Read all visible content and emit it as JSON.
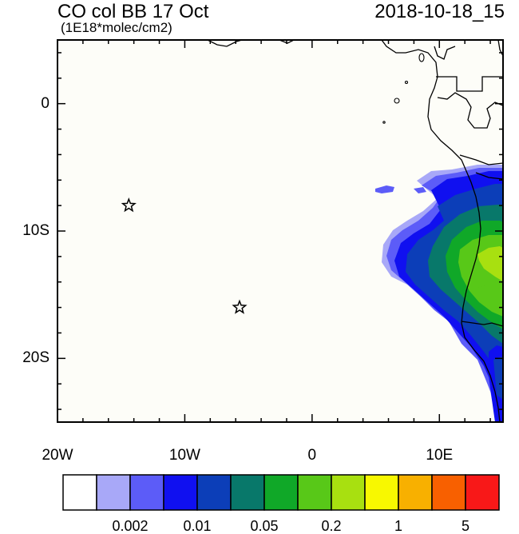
{
  "header": {
    "title": "CO col BB 17 Oct",
    "units": "(1E18*molec/cm2)",
    "valid_time": "2018-10-18_15"
  },
  "map": {
    "lon_range": [
      -20,
      15
    ],
    "lat_range": [
      -25,
      5
    ],
    "background": "#fdfdf8",
    "lat_labels": [
      {
        "lat": 0,
        "text": "0"
      },
      {
        "lat": -10,
        "text": "10S"
      },
      {
        "lat": -20,
        "text": "20S"
      }
    ],
    "lon_labels": [
      {
        "lon": -20,
        "text": "20W"
      },
      {
        "lon": -10,
        "text": "10W"
      },
      {
        "lon": 0,
        "text": "0"
      },
      {
        "lon": 10,
        "text": "10E"
      }
    ],
    "stations": [
      {
        "lon": -14.4,
        "lat": -8.0,
        "marker": "star-icon"
      },
      {
        "lon": -5.7,
        "lat": -16.0,
        "marker": "star-icon"
      }
    ]
  },
  "colorbar": {
    "colors": [
      "#ffffff",
      "#a8a8f8",
      "#5c5cf8",
      "#1010f0",
      "#0c3eb8",
      "#08786a",
      "#10a828",
      "#58c818",
      "#a8e010",
      "#f8f800",
      "#f8b000",
      "#f86000",
      "#f81818"
    ],
    "labels": [
      {
        "after_box": 2,
        "text": "0.002"
      },
      {
        "after_box": 4,
        "text": "0.01"
      },
      {
        "after_box": 6,
        "text": "0.05"
      },
      {
        "after_box": 8,
        "text": "0.2"
      },
      {
        "after_box": 10,
        "text": "1"
      },
      {
        "after_box": 12,
        "text": "5"
      }
    ]
  }
}
